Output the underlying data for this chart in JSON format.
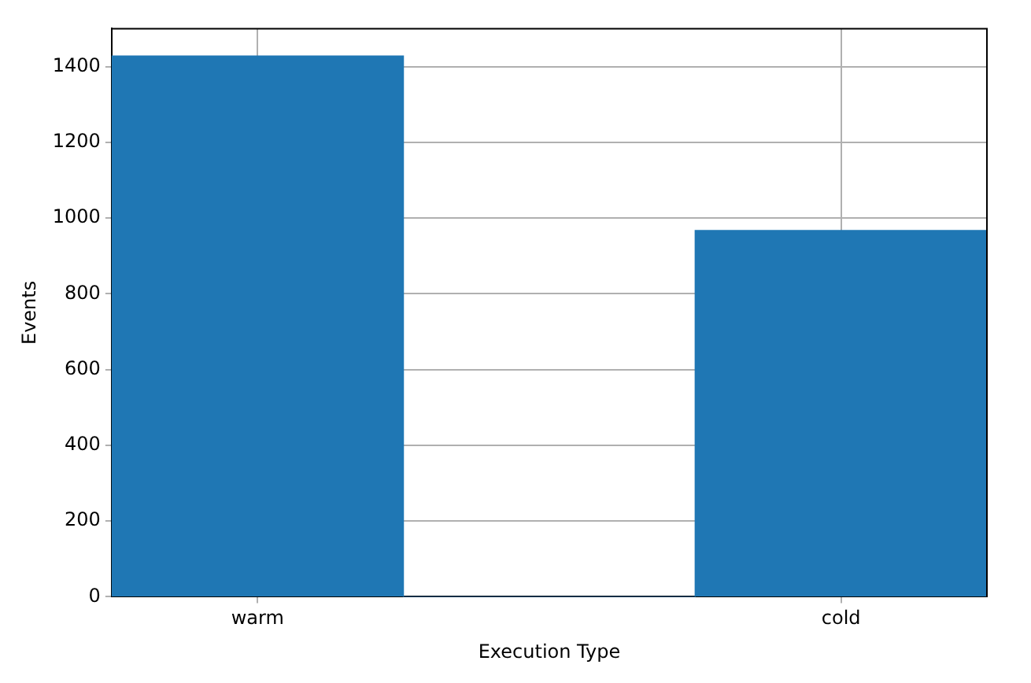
{
  "chart_data": {
    "type": "bar",
    "xlabel": "Execution Type",
    "ylabel": "Events",
    "categories": [
      "warm",
      null,
      "cold"
    ],
    "values": [
      1428,
      0,
      967
    ],
    "color": "#1f77b4",
    "ylim": [
      0,
      1500
    ],
    "yticks": [
      0,
      200,
      400,
      600,
      800,
      1000,
      1200,
      1400
    ],
    "grid": true,
    "legend": false
  }
}
